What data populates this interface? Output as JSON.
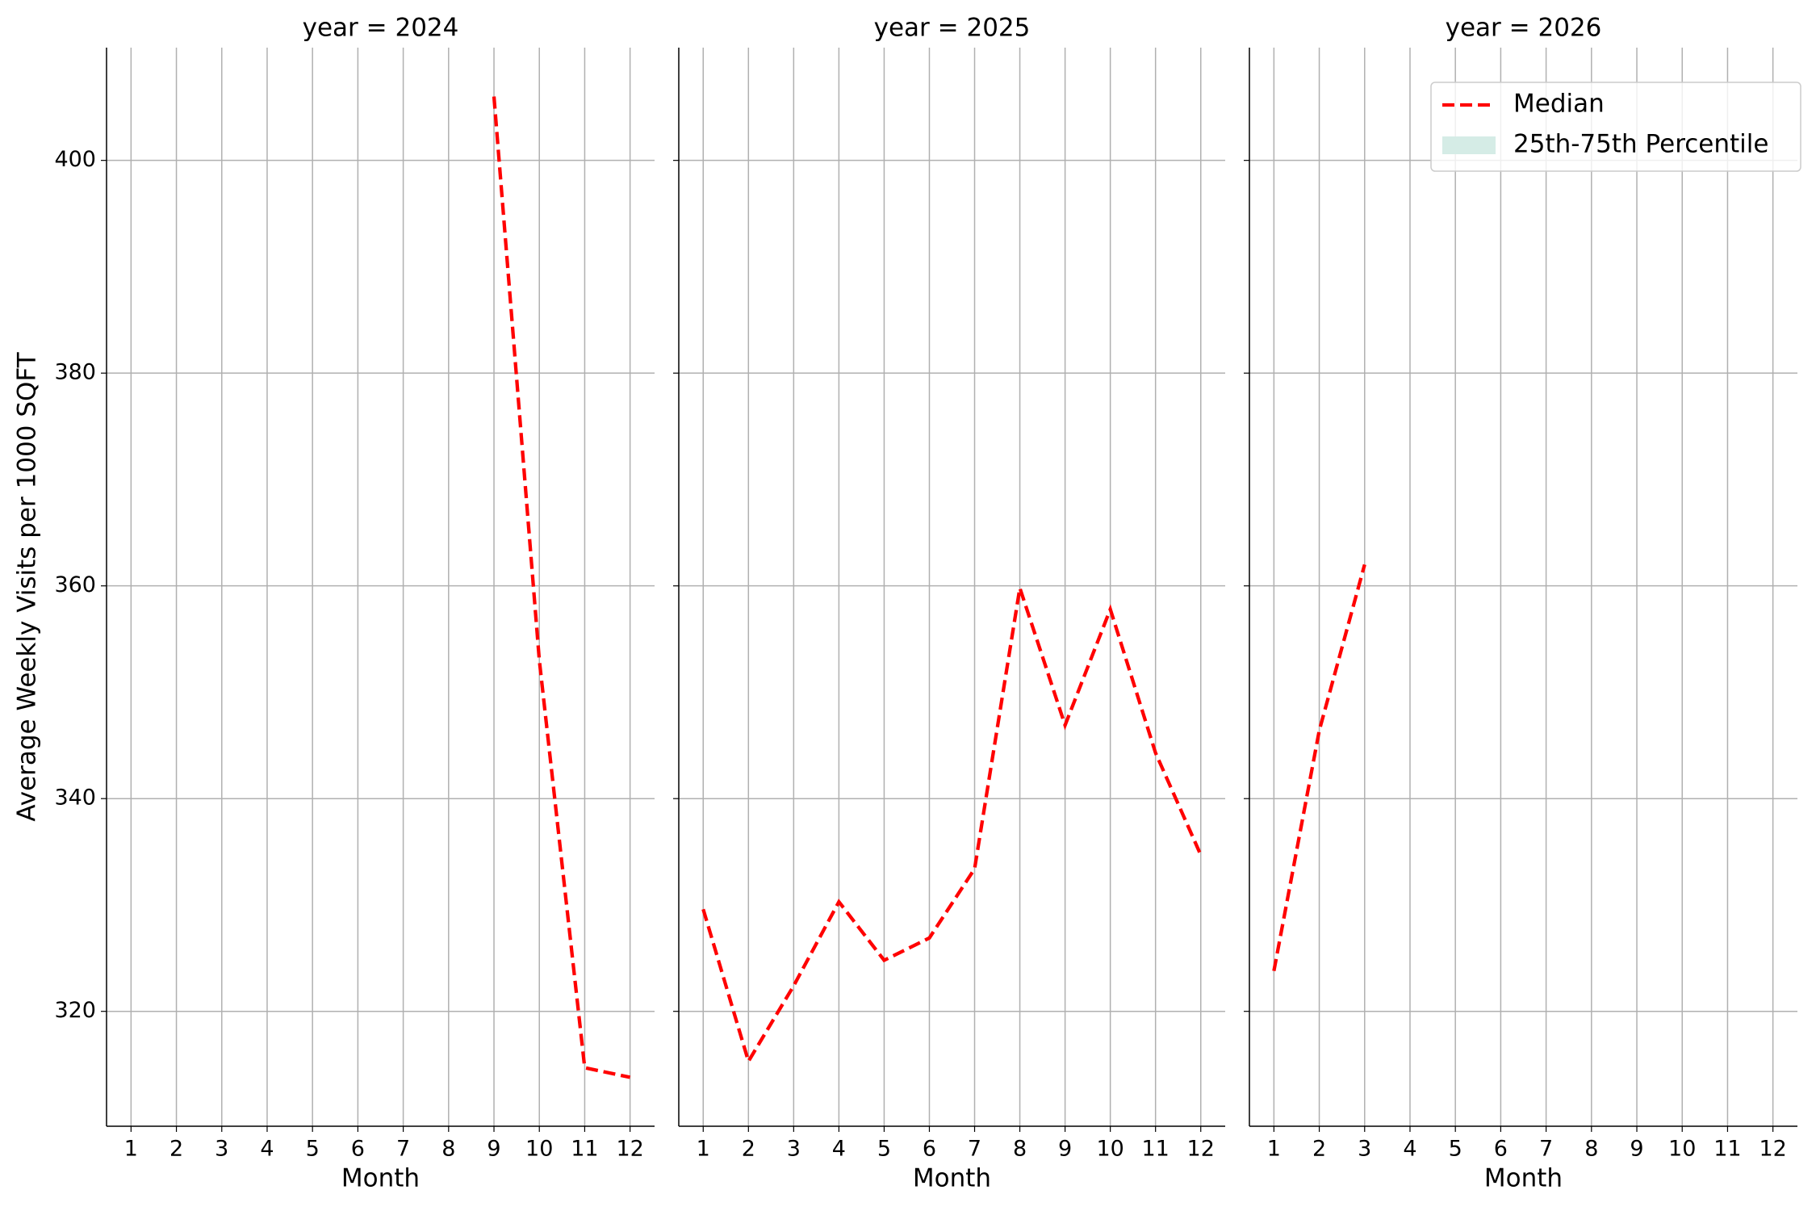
{
  "chart_data": [
    {
      "type": "line",
      "title": "year = 2024",
      "x_label": "Month",
      "y_label": "Average Weekly Visits per 1000 SQFT",
      "x": [
        1,
        2,
        3,
        4,
        5,
        6,
        7,
        8,
        9,
        10,
        11,
        12
      ],
      "xlim": [
        0.46,
        12.54
      ],
      "xticks": [
        1,
        2,
        3,
        4,
        5,
        6,
        7,
        8,
        9,
        10,
        11,
        12
      ],
      "ylim": [
        309.2,
        410.6
      ],
      "yticks": [
        320,
        340,
        360,
        380,
        400
      ],
      "grid": true,
      "series": [
        {
          "name": "Median",
          "color": "#ff0000",
          "dashed": true,
          "values": [
            null,
            null,
            null,
            null,
            null,
            null,
            null,
            null,
            406.0,
            353.0,
            314.7,
            313.8
          ]
        }
      ]
    },
    {
      "type": "line",
      "title": "year = 2025",
      "x_label": "Month",
      "x": [
        1,
        2,
        3,
        4,
        5,
        6,
        7,
        8,
        9,
        10,
        11,
        12
      ],
      "xlim": [
        0.46,
        12.54
      ],
      "xticks": [
        1,
        2,
        3,
        4,
        5,
        6,
        7,
        8,
        9,
        10,
        11,
        12
      ],
      "ylim": [
        309.2,
        410.6
      ],
      "grid": true,
      "series": [
        {
          "name": "Median",
          "color": "#ff0000",
          "dashed": true,
          "values": [
            329.6,
            315.3,
            322.4,
            330.3,
            324.8,
            326.9,
            333.4,
            359.8,
            346.9,
            357.8,
            344.3,
            334.7
          ]
        }
      ]
    },
    {
      "type": "line",
      "title": "year = 2026",
      "x_label": "Month",
      "x": [
        1,
        2,
        3,
        4,
        5,
        6,
        7,
        8,
        9,
        10,
        11,
        12
      ],
      "xlim": [
        0.46,
        12.54
      ],
      "xticks": [
        1,
        2,
        3,
        4,
        5,
        6,
        7,
        8,
        9,
        10,
        11,
        12
      ],
      "ylim": [
        309.2,
        410.6
      ],
      "grid": true,
      "legend": "upper right",
      "band": {
        "name": "25th-75th Percentile",
        "color": "#d5ece6"
      },
      "series": [
        {
          "name": "Median",
          "color": "#ff0000",
          "dashed": true,
          "values": [
            323.8,
            346.4,
            362.0,
            null,
            null,
            null,
            null,
            null,
            null,
            null,
            null,
            null
          ]
        }
      ]
    }
  ]
}
